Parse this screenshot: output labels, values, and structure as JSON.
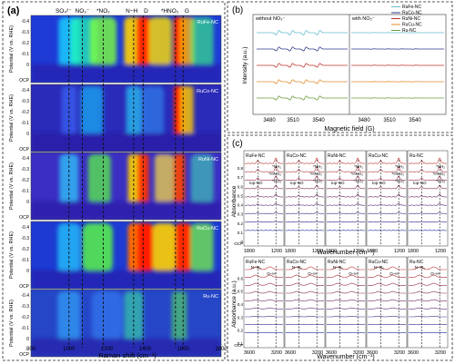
{
  "panel_a": {
    "label": "(a)",
    "ylabel": "Potential (V vs. RHE)",
    "xlabel": "Raman shift (cm⁻¹)",
    "ocp": "OCP",
    "x_ticks": [
      "800",
      "1000",
      "1200",
      "1400",
      "1600",
      "1800"
    ],
    "y_ticks": [
      "-0.4",
      "-0.3",
      "-0.2",
      "-0.1",
      "0"
    ],
    "band_labels": [
      "SO₄²⁻",
      "NO₃⁻",
      "*NO₂",
      "N−H",
      "D",
      "*HNO₂",
      "G"
    ],
    "samples": [
      "RuFe-NC",
      "RuCo-NC",
      "RuNi-NC",
      "RuCu-NC",
      "Ru-NC"
    ]
  },
  "panel_b": {
    "label": "(b)",
    "left_title": "without NO₃⁻",
    "right_title": "with NO₃⁻",
    "ylabel": "Intensity (a.u.)",
    "xlabel": "Magnetic field (G)",
    "x_ticks_left": [
      "3480",
      "3510",
      "3540"
    ],
    "x_ticks_right": [
      "3480",
      "3510",
      "3540"
    ],
    "legend": [
      {
        "name": "RuFe-NC",
        "color": "#66bccc"
      },
      {
        "name": "RuCo-NC",
        "color": "#2f3a8c"
      },
      {
        "name": "RuNi-NC",
        "color": "#c0392b"
      },
      {
        "name": "RuCu-NC",
        "color": "#e08a2c"
      },
      {
        "name": "Ru-NC",
        "color": "#6a9a3a"
      }
    ]
  },
  "panel_c": {
    "label": "(c)",
    "top_ylabel": "Absorbance",
    "bottom_ylabel": "Absorbance (a.u.)",
    "top_xlabel": "Wavenumber (cm⁻¹)",
    "bottom_xlabel": "Wavenumber (cm⁻¹)",
    "samples": [
      "RuFe-NC",
      "RuCo-NC",
      "RuNi-NC",
      "RuCu-NC",
      "Ru-NC"
    ],
    "top_ticks": [
      "1800",
      "1200"
    ],
    "bottom_ticks": [
      "3600",
      "3200"
    ],
    "top_y_ticks": [
      "0",
      "0.1",
      "0.2",
      "0.3",
      "0.4",
      "0.5",
      "0.6",
      "0.7",
      "0.8"
    ],
    "bottom_y_ticks": [
      "0.1",
      "0.2",
      "0.3",
      "0.4",
      "0.5",
      "0.6"
    ],
    "ocp": "OCP",
    "annotations": {
      "nh2": "*NH₂",
      "hno2": "*HNO₂",
      "no2": "*NO₂",
      "topno": "top-NO",
      "nh4": "N−H₄",
      "oh": "O−H"
    }
  }
}
